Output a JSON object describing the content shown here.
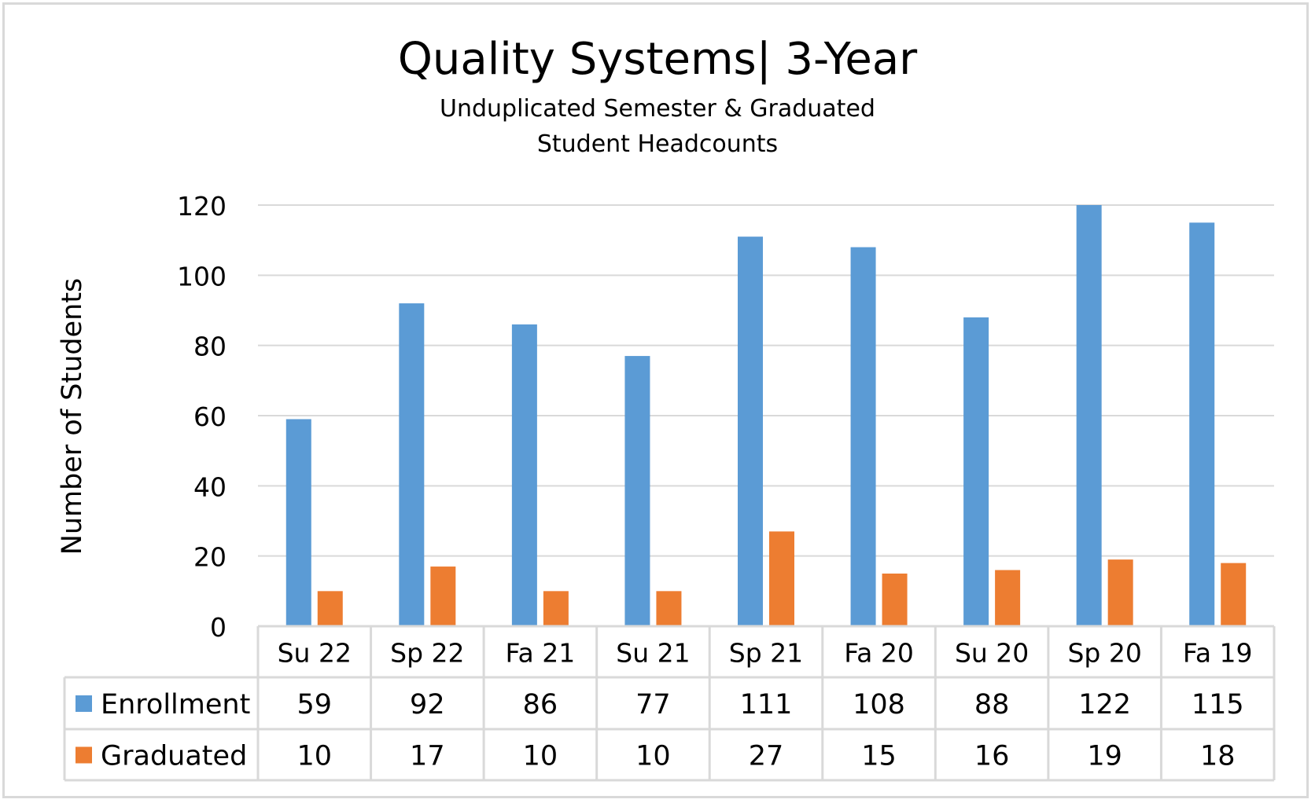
{
  "chart_data": {
    "type": "bar",
    "title": "Quality Systems| 3-Year",
    "subtitle": "Unduplicated Semester & Graduated\nStudent Headcounts",
    "xlabel": "",
    "ylabel": "Number of Students",
    "ylim": [
      0,
      120
    ],
    "yticks": [
      0,
      20,
      40,
      60,
      80,
      100,
      120
    ],
    "grid": true,
    "legend": "data-table",
    "categories": [
      "Su 22",
      "Sp 22",
      "Fa 21",
      "Su 21",
      "Sp 21",
      "Fa 20",
      "Su 20",
      "Sp 20",
      "Fa 19"
    ],
    "series": [
      {
        "name": "Enrollment",
        "color": "#5b9bd5",
        "values": [
          59,
          92,
          86,
          77,
          111,
          108,
          88,
          122,
          115
        ]
      },
      {
        "name": "Graduated",
        "color": "#ed7d31",
        "values": [
          10,
          17,
          10,
          10,
          27,
          15,
          16,
          19,
          18
        ]
      }
    ]
  }
}
